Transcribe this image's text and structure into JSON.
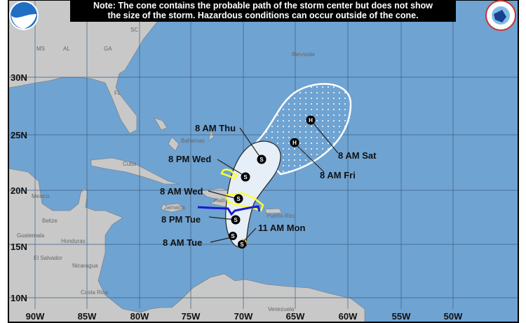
{
  "note": {
    "line1": "Note: The cone contains the probable path of the storm center but does not show",
    "line2": "the size of the storm. Hazardous conditions can occur outside of the cone."
  },
  "logos": {
    "left": "NOAA",
    "right": "National Weather Service"
  },
  "colors": {
    "ocean": "#6fa3d2",
    "land": "#c8c8c8",
    "cone": "#e6eef7",
    "warning_watch": "#ffff33",
    "tropical_storm_warning": "#1a1ad0",
    "point": "#000000"
  },
  "longitude_labels": [
    "90W",
    "85W",
    "80W",
    "75W",
    "70W",
    "65W",
    "60W",
    "55W",
    "50W"
  ],
  "latitude_labels": [
    "30N",
    "25N",
    "20N",
    "15N",
    "10N"
  ],
  "places": [
    "MS",
    "AL",
    "GA",
    "SC",
    "FL",
    "Bermuda",
    "Bahamas",
    "Cuba",
    "Mexico",
    "Belize",
    "Guatemala",
    "Honduras",
    "El Salvador",
    "Nicaragua",
    "Costa Rica",
    "Haiti",
    "Puerto Rico",
    "Venezuela",
    "Jamaica"
  ],
  "forecast_points": [
    {
      "time": "11 AM Mon",
      "symbol": "S"
    },
    {
      "time": "8 AM Tue",
      "symbol": "S"
    },
    {
      "time": "8 PM Tue",
      "symbol": "S"
    },
    {
      "time": "8 AM Wed",
      "symbol": "S"
    },
    {
      "time": "8 PM Wed",
      "symbol": "S"
    },
    {
      "time": "8 AM Thu",
      "symbol": "S"
    },
    {
      "time": "8 AM Fri",
      "symbol": "H"
    },
    {
      "time": "8 AM Sat",
      "symbol": "H"
    }
  ]
}
